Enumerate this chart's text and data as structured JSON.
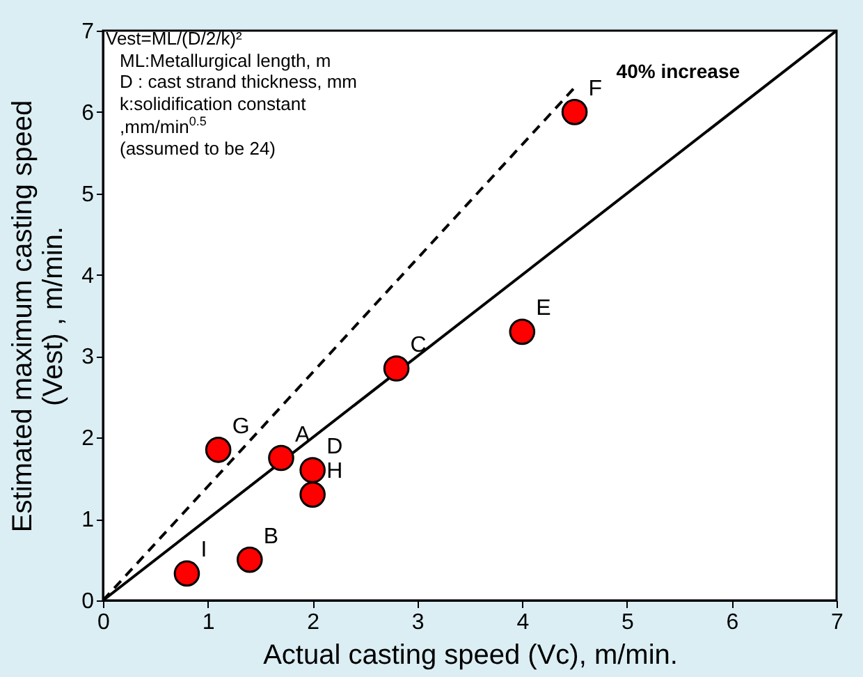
{
  "chart_data": {
    "type": "scatter",
    "xlabel": "Actual casting speed (Vc),  m/min.",
    "ylabel": "Estimated maximum casting speed\n(Vest) , m/min.",
    "xlim": [
      0,
      7
    ],
    "ylim": [
      0,
      7
    ],
    "xticks": [
      0,
      1,
      2,
      3,
      4,
      5,
      6,
      7
    ],
    "yticks": [
      0,
      1,
      2,
      3,
      4,
      5,
      6,
      7
    ],
    "series": [
      {
        "type": "line",
        "color": "#000000",
        "x": [
          0,
          7
        ],
        "values": [
          0,
          7
        ],
        "line_style": "solid",
        "marker": "none"
      },
      {
        "type": "line",
        "name": "40% increase",
        "color": "#000000",
        "x": [
          0,
          4.5
        ],
        "values": [
          0,
          6.3
        ],
        "line_style": "dashed",
        "marker": "none"
      },
      {
        "color": "#ff0000",
        "marker": "circle",
        "x": [
          1.7,
          1.4,
          2.8,
          2.0,
          4.0,
          4.5,
          1.1,
          2.0,
          0.8
        ],
        "values": [
          1.75,
          0.5,
          2.85,
          1.6,
          3.3,
          6.0,
          1.85,
          1.3,
          0.33
        ]
      }
    ],
    "annotations": [
      "Vest=ML/(D/2/k)²",
      "ML:Metallurgical length, m",
      "D : cast strand thickness, mm",
      "k:solidification constant",
      ",mm/min$^{0.5}$",
      "(assumed to be 24)",
      {
        "text": "A",
        "x": 1.7,
        "y": 1.75
      },
      {
        "text": "B",
        "x": 1.4,
        "y": 0.5
      },
      {
        "text": "C",
        "x": 2.8,
        "y": 2.85
      },
      {
        "text": "D",
        "x": 2.0,
        "y": 1.6
      },
      {
        "text": "E",
        "x": 4.0,
        "y": 3.3
      },
      {
        "text": "F",
        "x": 4.5,
        "y": 6.0
      },
      {
        "text": "G",
        "x": 1.1,
        "y": 1.85
      },
      {
        "text": "H",
        "x": 2.0,
        "y": 1.3
      },
      {
        "text": "I",
        "x": 0.8,
        "y": 0.33
      }
    ]
  }
}
